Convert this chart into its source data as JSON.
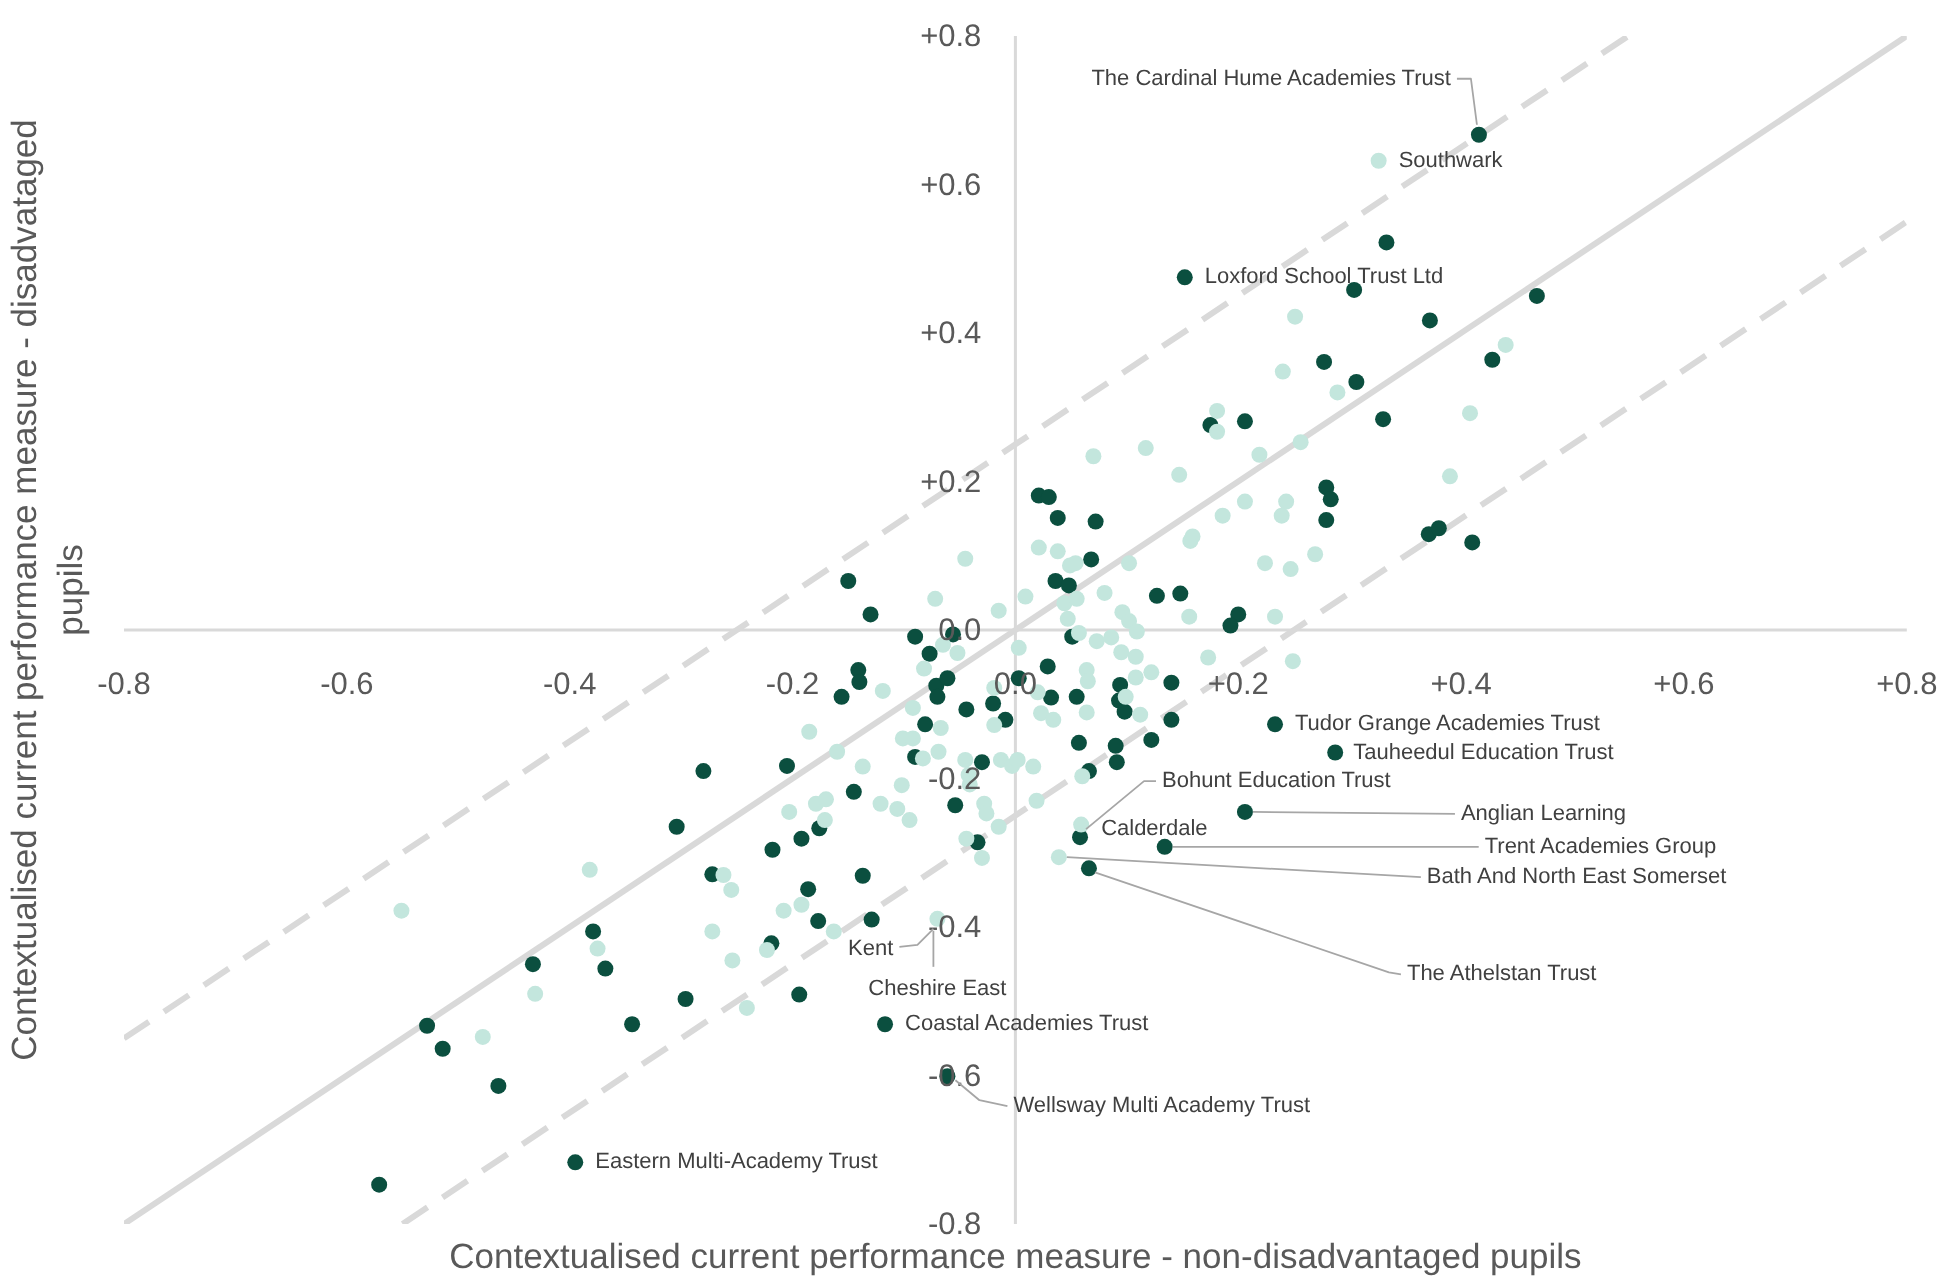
{
  "chart_data": {
    "type": "scatter",
    "xlabel": "Contextualised current performance measure - non-disadvantaged pupils",
    "ylabel": "Contextualised current performance measure - disadvataged pupils",
    "xlim": [
      -0.8,
      0.8
    ],
    "ylim": [
      -0.8,
      0.8
    ],
    "xticks": [
      {
        "value": -0.8,
        "label": "-0.8"
      },
      {
        "value": -0.6,
        "label": "-0.6"
      },
      {
        "value": -0.4,
        "label": "-0.4"
      },
      {
        "value": -0.2,
        "label": "-0.2"
      },
      {
        "value": 0,
        "label": "0.0"
      },
      {
        "value": 0.2,
        "label": "+0.2"
      },
      {
        "value": 0.4,
        "label": "+0.4"
      },
      {
        "value": 0.6,
        "label": "+0.6"
      },
      {
        "value": 0.8,
        "label": "+0.8"
      }
    ],
    "yticks": [
      {
        "value": -0.8,
        "label": "-0.8"
      },
      {
        "value": -0.6,
        "label": "-0.6"
      },
      {
        "value": -0.4,
        "label": "-0.4"
      },
      {
        "value": -0.2,
        "label": "-0.2"
      },
      {
        "value": 0,
        "label": "0.0"
      },
      {
        "value": 0.2,
        "label": "+0.2"
      },
      {
        "value": 0.4,
        "label": "+0.4"
      },
      {
        "value": 0.6,
        "label": "+0.6"
      },
      {
        "value": 0.8,
        "label": "+0.8"
      }
    ],
    "marker": "circle",
    "series": [
      {
        "color": "#0b4f3f",
        "x": [
          0.416,
          0.333,
          0.152,
          0.304,
          0.468,
          0.372,
          0.277,
          0.428,
          0.306,
          0.33,
          0.279,
          0.283,
          0.279,
          0.371,
          0.38,
          0.41,
          0.175,
          0.206,
          0.021,
          0.03,
          0.038,
          0.072,
          0.068,
          0.036,
          0.048,
          0.127,
          0.148,
          0.2,
          0.193,
          -0.15,
          -0.13,
          -0.09,
          -0.077,
          -0.056,
          -0.141,
          -0.14,
          -0.156,
          -0.071,
          -0.061,
          -0.07,
          0.003,
          0.029,
          0.051,
          0.032,
          0.055,
          0.094,
          0.093,
          0.098,
          0.14,
          0.14,
          0.122,
          0.09,
          0.091,
          0.057,
          0.066,
          -0.044,
          -0.02,
          -0.009,
          -0.081,
          -0.09,
          -0.03,
          -0.054,
          -0.034,
          -0.205,
          -0.28,
          -0.145,
          -0.192,
          -0.176,
          -0.218,
          -0.137,
          -0.186,
          -0.272,
          0.058,
          0.066,
          0.134,
          0.206,
          0.233,
          -0.304,
          -0.177,
          -0.129,
          -0.219,
          -0.194,
          -0.296,
          -0.344,
          -0.379,
          -0.368,
          -0.433,
          -0.528,
          -0.514,
          -0.464,
          -0.571,
          -0.395,
          -0.117,
          -0.061,
          0.287
        ],
        "values": [
          0.667,
          0.522,
          0.475,
          0.458,
          0.45,
          0.417,
          0.361,
          0.364,
          0.334,
          0.284,
          0.192,
          0.176,
          0.148,
          0.129,
          0.137,
          0.118,
          0.276,
          0.281,
          0.181,
          0.179,
          0.151,
          0.146,
          0.095,
          0.066,
          0.06,
          0.046,
          0.049,
          0.021,
          0.006,
          0.066,
          0.021,
          -0.009,
          -0.032,
          -0.006,
          -0.054,
          -0.07,
          -0.09,
          -0.075,
          -0.065,
          -0.09,
          -0.065,
          -0.049,
          -0.009,
          -0.091,
          -0.09,
          -0.074,
          -0.095,
          -0.11,
          -0.071,
          -0.121,
          -0.148,
          -0.156,
          -0.178,
          -0.152,
          -0.19,
          -0.107,
          -0.099,
          -0.121,
          -0.127,
          -0.171,
          -0.178,
          -0.236,
          -0.286,
          -0.183,
          -0.19,
          -0.218,
          -0.281,
          -0.267,
          -0.296,
          -0.331,
          -0.349,
          -0.329,
          -0.279,
          -0.321,
          -0.292,
          -0.245,
          -0.127,
          -0.265,
          -0.392,
          -0.39,
          -0.422,
          -0.491,
          -0.497,
          -0.531,
          -0.406,
          -0.456,
          -0.45,
          -0.533,
          -0.564,
          -0.614,
          -0.747,
          -0.717,
          -0.531,
          -0.601,
          -0.165
        ]
      },
      {
        "color": "#c3e6dd",
        "x": [
          0.326,
          0.251,
          0.44,
          0.24,
          0.289,
          0.408,
          0.39,
          0.181,
          0.181,
          0.117,
          0.07,
          0.147,
          0.219,
          0.256,
          0.206,
          0.243,
          0.239,
          0.186,
          0.159,
          0.157,
          0.102,
          0.224,
          0.247,
          0.269,
          0.021,
          0.038,
          0.049,
          0.054,
          -0.045,
          -0.072,
          0.009,
          0.08,
          0.044,
          0.055,
          0.047,
          0.096,
          0.102,
          0.109,
          0.156,
          0.233,
          -0.015,
          0.057,
          0.073,
          0.086,
          0.095,
          0.108,
          0.122,
          0.108,
          0.173,
          0.249,
          0.003,
          -0.052,
          -0.065,
          -0.082,
          0.064,
          0.065,
          0.02,
          0.023,
          0.034,
          0.064,
          0.099,
          0.112,
          -0.019,
          -0.019,
          -0.119,
          -0.092,
          -0.067,
          -0.185,
          -0.16,
          -0.101,
          -0.092,
          -0.083,
          -0.069,
          -0.045,
          -0.013,
          -0.003,
          0.002,
          0.016,
          0.06,
          -0.137,
          -0.102,
          -0.042,
          -0.041,
          -0.121,
          -0.106,
          -0.095,
          -0.203,
          -0.179,
          -0.17,
          -0.171,
          -0.028,
          -0.026,
          0.019,
          -0.015,
          -0.044,
          -0.03,
          0.059,
          0.039,
          -0.255,
          -0.262,
          -0.551,
          -0.382,
          -0.375,
          -0.431,
          -0.478,
          -0.272,
          -0.254,
          -0.241,
          -0.208,
          -0.192,
          -0.223,
          -0.163,
          -0.07
        ],
        "values": [
          0.632,
          0.422,
          0.384,
          0.348,
          0.32,
          0.292,
          0.207,
          0.295,
          0.267,
          0.245,
          0.234,
          0.209,
          0.236,
          0.253,
          0.173,
          0.173,
          0.154,
          0.154,
          0.126,
          0.12,
          0.09,
          0.09,
          0.082,
          0.102,
          0.111,
          0.106,
          0.087,
          0.09,
          0.096,
          0.042,
          0.045,
          0.05,
          0.036,
          0.042,
          0.015,
          0.024,
          0.012,
          -0.002,
          0.018,
          0.018,
          0.026,
          -0.004,
          -0.015,
          -0.01,
          -0.03,
          -0.036,
          -0.057,
          -0.064,
          -0.037,
          -0.042,
          -0.024,
          -0.031,
          -0.02,
          -0.052,
          -0.054,
          -0.069,
          -0.084,
          -0.112,
          -0.121,
          -0.111,
          -0.09,
          -0.114,
          -0.078,
          -0.128,
          -0.082,
          -0.105,
          -0.132,
          -0.137,
          -0.164,
          -0.146,
          -0.146,
          -0.173,
          -0.164,
          -0.175,
          -0.175,
          -0.183,
          -0.175,
          -0.184,
          -0.197,
          -0.184,
          -0.209,
          -0.195,
          -0.208,
          -0.234,
          -0.241,
          -0.256,
          -0.245,
          -0.234,
          -0.228,
          -0.256,
          -0.234,
          -0.247,
          -0.23,
          -0.265,
          -0.281,
          -0.307,
          -0.262,
          -0.306,
          -0.35,
          -0.33,
          -0.378,
          -0.323,
          -0.429,
          -0.49,
          -0.548,
          -0.406,
          -0.445,
          -0.509,
          -0.378,
          -0.37,
          -0.431,
          -0.406,
          -0.389
        ]
      },
      {
        "type": "line",
        "color": "#d9d9d9",
        "line_style": "solid",
        "marker": "none",
        "x": [
          -0.8,
          0.8
        ],
        "values": [
          -0.8,
          0.8
        ]
      },
      {
        "type": "line",
        "color": "#d9d9d9",
        "line_style": "dashed",
        "marker": "none",
        "x": [
          -0.8,
          0.55
        ],
        "values": [
          -0.55,
          0.8
        ]
      },
      {
        "type": "line",
        "color": "#d9d9d9",
        "line_style": "dashed",
        "marker": "none",
        "x": [
          -0.55,
          0.8
        ],
        "values": [
          -0.8,
          0.55
        ]
      }
    ],
    "annotations": [
      {
        "text": "The Cardinal Hume Academies Trust",
        "x": 0.416,
        "y": 0.667
      },
      {
        "text": "Southwark",
        "x": 0.326,
        "y": 0.632
      },
      {
        "text": "Loxford School Trust Ltd",
        "x": 0.152,
        "y": 0.475
      },
      {
        "text": "Tudor Grange Academies Trust",
        "x": 0.233,
        "y": -0.127
      },
      {
        "text": "Tauheedul Education Trust",
        "x": 0.287,
        "y": -0.165
      },
      {
        "text": "Bohunt Education Trust",
        "x": 0.058,
        "y": -0.279
      },
      {
        "text": "Anglian Learning",
        "x": 0.206,
        "y": -0.245
      },
      {
        "text": "Calderdale",
        "x": 0.059,
        "y": -0.262
      },
      {
        "text": "Trent Academies Group",
        "x": 0.134,
        "y": -0.292
      },
      {
        "text": "Bath And North East Somerset",
        "x": 0.039,
        "y": -0.306
      },
      {
        "text": "Kent",
        "x": -0.07,
        "y": -0.389
      },
      {
        "text": "The Athelstan Trust",
        "x": 0.066,
        "y": -0.321
      },
      {
        "text": "Cheshire East",
        "x": -0.07,
        "y": -0.389
      },
      {
        "text": "Coastal Academies Trust",
        "x": -0.117,
        "y": -0.531
      },
      {
        "text": "Wellsway Multi Academy Trust",
        "x": -0.061,
        "y": -0.601
      },
      {
        "text": "Eastern Multi-Academy Trust",
        "x": -0.395,
        "y": -0.717
      }
    ]
  }
}
